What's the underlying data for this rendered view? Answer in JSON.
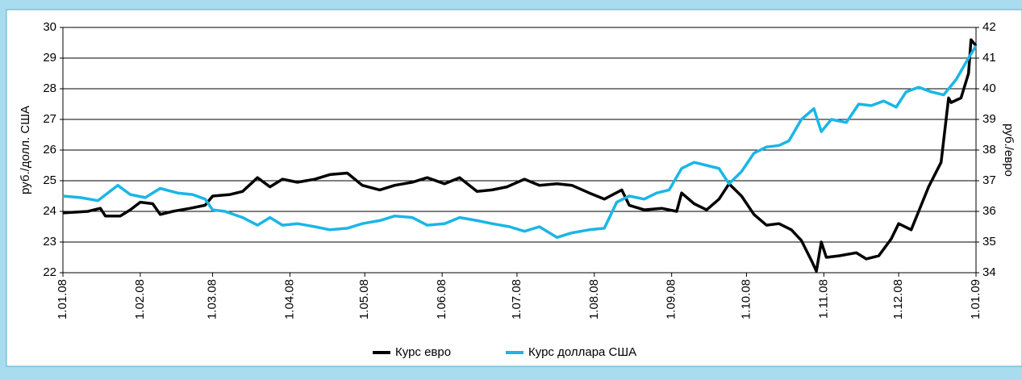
{
  "chart_data": {
    "type": "line",
    "y_label": "руб./долл. США",
    "y2_label": "руб./евро",
    "xlim": [
      0,
      366
    ],
    "xticks": [
      {
        "value": 0,
        "label": "1.01.08"
      },
      {
        "value": 31,
        "label": "1.02.08"
      },
      {
        "value": 60,
        "label": "1.03.08"
      },
      {
        "value": 91,
        "label": "1.04.08"
      },
      {
        "value": 121,
        "label": "1.05.08"
      },
      {
        "value": 152,
        "label": "1.06.08"
      },
      {
        "value": 182,
        "label": "1.07.08"
      },
      {
        "value": 213,
        "label": "1.08.08"
      },
      {
        "value": 244,
        "label": "1.09.08"
      },
      {
        "value": 274,
        "label": "1.10.08"
      },
      {
        "value": 305,
        "label": "1.11.08"
      },
      {
        "value": 335,
        "label": "1.12.08"
      },
      {
        "value": 366,
        "label": "1.01.09"
      }
    ],
    "ylim": [
      22,
      30
    ],
    "yticks": [
      22,
      23,
      24,
      25,
      26,
      27,
      28,
      29,
      30
    ],
    "y2lim": [
      34,
      42
    ],
    "y2ticks": [
      34,
      35,
      36,
      37,
      38,
      39,
      40,
      41,
      42
    ],
    "grid": true,
    "legend": "bottom",
    "series": [
      {
        "name": "Курс евро",
        "color": "#000000",
        "axis": "y2",
        "x": [
          0,
          10,
          15,
          17,
          23,
          27,
          31,
          36,
          39,
          44,
          51,
          57,
          60,
          67,
          72,
          78,
          83,
          88,
          94,
          101,
          107,
          114,
          120,
          127,
          133,
          140,
          146,
          153,
          159,
          166,
          172,
          178,
          185,
          191,
          198,
          204,
          211,
          217,
          224,
          227,
          233,
          240,
          246,
          248,
          253,
          258,
          263,
          267,
          272,
          277,
          282,
          287,
          292,
          296,
          300,
          302,
          304,
          306,
          311,
          318,
          322,
          327,
          332,
          335,
          340,
          343,
          347,
          352,
          355,
          356,
          360,
          363,
          364,
          366
        ],
        "values": [
          35.95,
          36.0,
          36.1,
          35.85,
          35.85,
          36.05,
          36.3,
          36.25,
          35.9,
          36.0,
          36.1,
          36.2,
          36.5,
          36.55,
          36.65,
          37.1,
          36.8,
          37.05,
          36.95,
          37.05,
          37.2,
          37.25,
          36.85,
          36.7,
          36.85,
          36.95,
          37.1,
          36.9,
          37.1,
          36.65,
          36.7,
          36.8,
          37.05,
          36.85,
          36.9,
          36.85,
          36.6,
          36.4,
          36.7,
          36.2,
          36.05,
          36.1,
          36.0,
          36.6,
          36.25,
          36.05,
          36.4,
          36.9,
          36.5,
          35.9,
          35.55,
          35.6,
          35.4,
          35.05,
          34.4,
          34.05,
          35.0,
          34.5,
          34.55,
          34.65,
          34.45,
          34.55,
          35.1,
          35.6,
          35.4,
          36.0,
          36.8,
          37.6,
          39.7,
          39.55,
          39.7,
          40.5,
          41.6,
          41.4
        ]
      },
      {
        "name": "Курс доллара США",
        "color": "#1ab6e6",
        "x": [
          0,
          7,
          14,
          22,
          27,
          33,
          39,
          46,
          52,
          57,
          60,
          65,
          72,
          78,
          83,
          88,
          94,
          101,
          107,
          114,
          120,
          127,
          133,
          140,
          146,
          153,
          159,
          166,
          172,
          179,
          185,
          191,
          198,
          204,
          211,
          217,
          222,
          227,
          233,
          238,
          243,
          248,
          253,
          258,
          263,
          267,
          272,
          277,
          282,
          287,
          291,
          296,
          301,
          304,
          308,
          314,
          319,
          324,
          329,
          334,
          338,
          343,
          348,
          353,
          358,
          363,
          366
        ],
        "values": [
          24.5,
          24.45,
          24.35,
          24.85,
          24.55,
          24.45,
          24.75,
          24.6,
          24.55,
          24.4,
          24.05,
          24.0,
          23.8,
          23.55,
          23.8,
          23.55,
          23.6,
          23.5,
          23.4,
          23.45,
          23.6,
          23.7,
          23.85,
          23.8,
          23.55,
          23.6,
          23.8,
          23.7,
          23.6,
          23.5,
          23.35,
          23.5,
          23.15,
          23.3,
          23.4,
          23.45,
          24.3,
          24.5,
          24.4,
          24.6,
          24.7,
          25.4,
          25.6,
          25.5,
          25.4,
          24.9,
          25.3,
          25.9,
          26.1,
          26.15,
          26.3,
          27.0,
          27.35,
          26.6,
          27.0,
          26.9,
          27.5,
          27.45,
          27.6,
          27.4,
          27.9,
          28.05,
          27.9,
          27.8,
          28.3,
          29.0,
          29.4
        ]
      }
    ]
  }
}
